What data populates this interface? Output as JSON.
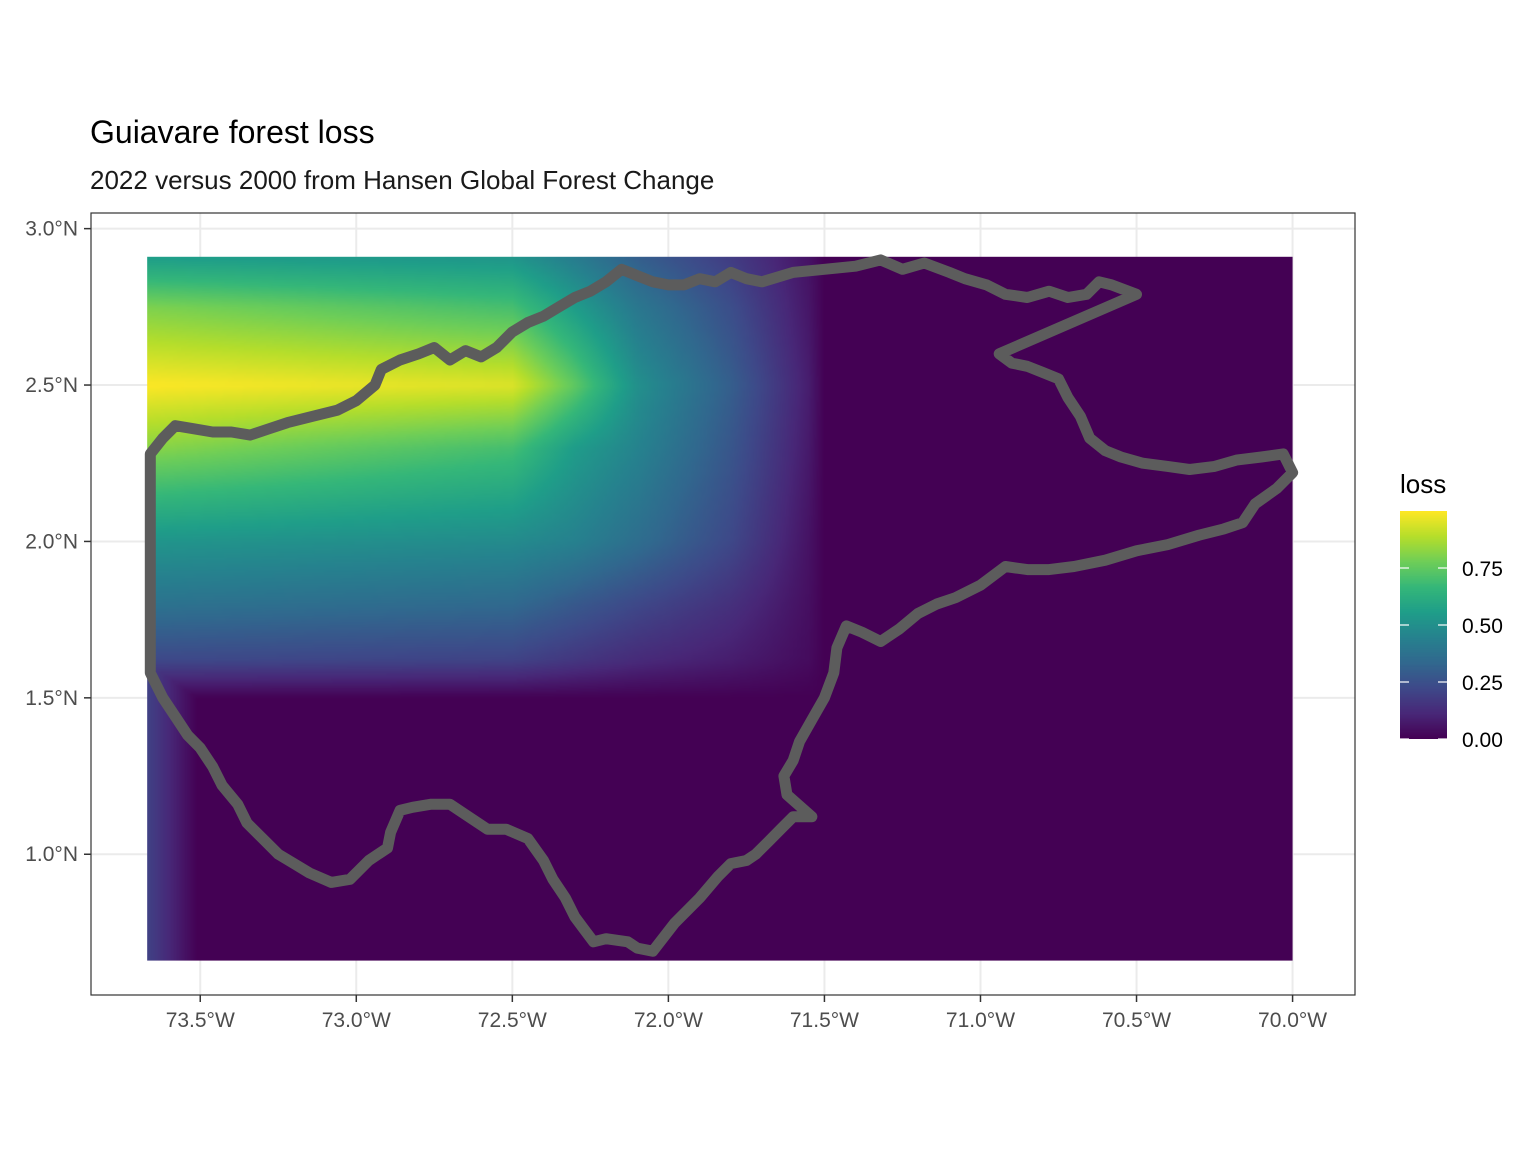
{
  "title": "Guiavare forest loss",
  "subtitle": "2022 versus 2000 from Hansen Global Forest Change",
  "chart_data": {
    "type": "heatmap",
    "title": "Guiavare forest loss",
    "subtitle": "2022 versus 2000 from Hansen Global Forest Change",
    "x_range": [
      -73.85,
      -69.8
    ],
    "y_range": [
      0.55,
      3.05
    ],
    "raster_extent": {
      "lon": [
        -73.67,
        -70.0
      ],
      "lat": [
        0.66,
        2.91
      ]
    },
    "x_ticks": [
      {
        "value": -73.5,
        "label": "73.5°W"
      },
      {
        "value": -73.0,
        "label": "73.0°W"
      },
      {
        "value": -72.5,
        "label": "72.5°W"
      },
      {
        "value": -72.0,
        "label": "72.0°W"
      },
      {
        "value": -71.5,
        "label": "71.5°W"
      },
      {
        "value": -71.0,
        "label": "71.0°W"
      },
      {
        "value": -70.5,
        "label": "70.5°W"
      },
      {
        "value": -70.0,
        "label": "70.0°W"
      }
    ],
    "y_ticks": [
      {
        "value": 1.0,
        "label": "1.0°N"
      },
      {
        "value": 1.5,
        "label": "1.5°N"
      },
      {
        "value": 2.0,
        "label": "2.0°N"
      },
      {
        "value": 2.5,
        "label": "2.5°N"
      },
      {
        "value": 3.0,
        "label": "3.0°N"
      }
    ],
    "loss_field": {
      "lon_nodes": [
        -73.67,
        -72.5,
        -72.3,
        -72.1,
        -71.8,
        -71.55,
        -71.5,
        -70.0
      ],
      "lat_nodes": [
        2.91,
        2.75,
        2.5,
        2.3,
        2.0,
        1.8,
        1.62,
        1.5,
        0.66
      ],
      "values": [
        [
          0.55,
          0.52,
          0.42,
          0.3,
          0.18,
          0.05,
          0.0,
          0.0
        ],
        [
          0.8,
          0.7,
          0.55,
          0.4,
          0.24,
          0.06,
          0.0,
          0.0
        ],
        [
          1.0,
          0.95,
          0.75,
          0.5,
          0.3,
          0.08,
          0.0,
          0.0
        ],
        [
          0.82,
          0.7,
          0.55,
          0.45,
          0.27,
          0.07,
          0.0,
          0.0
        ],
        [
          0.52,
          0.48,
          0.44,
          0.36,
          0.22,
          0.05,
          0.0,
          0.0
        ],
        [
          0.38,
          0.34,
          0.28,
          0.22,
          0.14,
          0.04,
          0.0,
          0.0
        ],
        [
          0.22,
          0.2,
          0.16,
          0.12,
          0.08,
          0.03,
          0.0,
          0.0
        ],
        [
          0.0,
          0.0,
          0.0,
          0.0,
          0.0,
          0.0,
          0.0,
          0.0
        ],
        [
          0.0,
          0.0,
          0.0,
          0.0,
          0.0,
          0.0,
          0.0,
          0.0
        ]
      ],
      "left_strip": {
        "lon": [
          -73.67,
          -73.51
        ],
        "lat": [
          0.66,
          1.62
        ],
        "value_at_left": 0.2
      }
    },
    "boundary": [
      [
        -73.66,
        2.28
      ],
      [
        -73.62,
        2.33
      ],
      [
        -73.58,
        2.37
      ],
      [
        -73.52,
        2.36
      ],
      [
        -73.46,
        2.35
      ],
      [
        -73.4,
        2.35
      ],
      [
        -73.34,
        2.34
      ],
      [
        -73.28,
        2.36
      ],
      [
        -73.22,
        2.38
      ],
      [
        -73.14,
        2.4
      ],
      [
        -73.06,
        2.42
      ],
      [
        -73.0,
        2.45
      ],
      [
        -72.94,
        2.5
      ],
      [
        -72.92,
        2.55
      ],
      [
        -72.86,
        2.58
      ],
      [
        -72.8,
        2.6
      ],
      [
        -72.75,
        2.62
      ],
      [
        -72.7,
        2.58
      ],
      [
        -72.65,
        2.61
      ],
      [
        -72.6,
        2.59
      ],
      [
        -72.55,
        2.62
      ],
      [
        -72.5,
        2.67
      ],
      [
        -72.45,
        2.7
      ],
      [
        -72.4,
        2.72
      ],
      [
        -72.35,
        2.75
      ],
      [
        -72.3,
        2.78
      ],
      [
        -72.25,
        2.8
      ],
      [
        -72.2,
        2.83
      ],
      [
        -72.15,
        2.87
      ],
      [
        -72.1,
        2.85
      ],
      [
        -72.05,
        2.83
      ],
      [
        -72.0,
        2.82
      ],
      [
        -71.95,
        2.82
      ],
      [
        -71.9,
        2.84
      ],
      [
        -71.85,
        2.83
      ],
      [
        -71.8,
        2.86
      ],
      [
        -71.75,
        2.84
      ],
      [
        -71.7,
        2.83
      ],
      [
        -71.6,
        2.86
      ],
      [
        -71.5,
        2.87
      ],
      [
        -71.4,
        2.88
      ],
      [
        -71.32,
        2.9
      ],
      [
        -71.25,
        2.87
      ],
      [
        -71.18,
        2.89
      ],
      [
        -71.1,
        2.86
      ],
      [
        -71.05,
        2.84
      ],
      [
        -70.98,
        2.82
      ],
      [
        -70.92,
        2.79
      ],
      [
        -70.85,
        2.78
      ],
      [
        -70.78,
        2.8
      ],
      [
        -70.72,
        2.78
      ],
      [
        -70.66,
        2.79
      ],
      [
        -70.62,
        2.83
      ],
      [
        -70.58,
        2.82
      ],
      [
        -70.5,
        2.79
      ],
      [
        -70.94,
        2.6
      ],
      [
        -70.9,
        2.57
      ],
      [
        -70.85,
        2.56
      ],
      [
        -70.8,
        2.54
      ],
      [
        -70.75,
        2.52
      ],
      [
        -70.72,
        2.46
      ],
      [
        -70.68,
        2.4
      ],
      [
        -70.65,
        2.33
      ],
      [
        -70.6,
        2.29
      ],
      [
        -70.55,
        2.27
      ],
      [
        -70.48,
        2.25
      ],
      [
        -70.4,
        2.24
      ],
      [
        -70.33,
        2.23
      ],
      [
        -70.25,
        2.24
      ],
      [
        -70.18,
        2.26
      ],
      [
        -70.1,
        2.27
      ],
      [
        -70.03,
        2.28
      ],
      [
        -70.0,
        2.22
      ],
      [
        -70.05,
        2.17
      ],
      [
        -70.12,
        2.12
      ],
      [
        -70.16,
        2.06
      ],
      [
        -70.22,
        2.04
      ],
      [
        -70.3,
        2.02
      ],
      [
        -70.4,
        1.99
      ],
      [
        -70.5,
        1.97
      ],
      [
        -70.6,
        1.94
      ],
      [
        -70.7,
        1.92
      ],
      [
        -70.78,
        1.91
      ],
      [
        -70.85,
        1.91
      ],
      [
        -70.92,
        1.92
      ],
      [
        -71.0,
        1.86
      ],
      [
        -71.08,
        1.82
      ],
      [
        -71.14,
        1.8
      ],
      [
        -71.2,
        1.77
      ],
      [
        -71.26,
        1.72
      ],
      [
        -71.32,
        1.68
      ],
      [
        -71.38,
        1.71
      ],
      [
        -71.43,
        1.73
      ],
      [
        -71.46,
        1.66
      ],
      [
        -71.47,
        1.58
      ],
      [
        -71.5,
        1.5
      ],
      [
        -71.54,
        1.43
      ],
      [
        -71.58,
        1.36
      ],
      [
        -71.6,
        1.3
      ],
      [
        -71.63,
        1.25
      ],
      [
        -71.62,
        1.19
      ],
      [
        -71.54,
        1.12
      ],
      [
        -71.6,
        1.12
      ],
      [
        -71.64,
        1.08
      ],
      [
        -71.68,
        1.04
      ],
      [
        -71.72,
        1.0
      ],
      [
        -71.75,
        0.98
      ],
      [
        -71.8,
        0.97
      ],
      [
        -71.84,
        0.93
      ],
      [
        -71.9,
        0.86
      ],
      [
        -71.98,
        0.78
      ],
      [
        -72.05,
        0.69
      ],
      [
        -72.1,
        0.7
      ],
      [
        -72.13,
        0.72
      ],
      [
        -72.2,
        0.73
      ],
      [
        -72.24,
        0.72
      ],
      [
        -72.27,
        0.76
      ],
      [
        -72.3,
        0.8
      ],
      [
        -72.33,
        0.86
      ],
      [
        -72.37,
        0.92
      ],
      [
        -72.4,
        0.98
      ],
      [
        -72.45,
        1.05
      ],
      [
        -72.52,
        1.08
      ],
      [
        -72.58,
        1.08
      ],
      [
        -72.64,
        1.12
      ],
      [
        -72.7,
        1.16
      ],
      [
        -72.76,
        1.16
      ],
      [
        -72.82,
        1.15
      ],
      [
        -72.86,
        1.14
      ],
      [
        -72.89,
        1.07
      ],
      [
        -72.9,
        1.02
      ],
      [
        -72.96,
        0.98
      ],
      [
        -73.02,
        0.92
      ],
      [
        -73.08,
        0.91
      ],
      [
        -73.15,
        0.94
      ],
      [
        -73.2,
        0.97
      ],
      [
        -73.25,
        1.0
      ],
      [
        -73.3,
        1.05
      ],
      [
        -73.35,
        1.1
      ],
      [
        -73.38,
        1.16
      ],
      [
        -73.43,
        1.22
      ],
      [
        -73.46,
        1.28
      ],
      [
        -73.5,
        1.34
      ],
      [
        -73.54,
        1.38
      ],
      [
        -73.58,
        1.44
      ],
      [
        -73.62,
        1.5
      ],
      [
        -73.66,
        1.58
      ],
      [
        -73.66,
        1.8
      ],
      [
        -73.66,
        2.0
      ],
      [
        -73.66,
        2.28
      ]
    ]
  },
  "legend": {
    "title": "loss",
    "labels": [
      "0.00",
      "0.25",
      "0.50",
      "0.75"
    ],
    "label_values": [
      0.0,
      0.25,
      0.5,
      0.75
    ]
  },
  "colors": {
    "viridis": [
      "#440154",
      "#482878",
      "#3e4989",
      "#31688e",
      "#26828e",
      "#1f9e89",
      "#35b779",
      "#6ece58",
      "#b5de2b",
      "#fde725"
    ],
    "boundary": "#5c5c5c",
    "grid": "#ebebeb",
    "panel_border": "#333333"
  }
}
